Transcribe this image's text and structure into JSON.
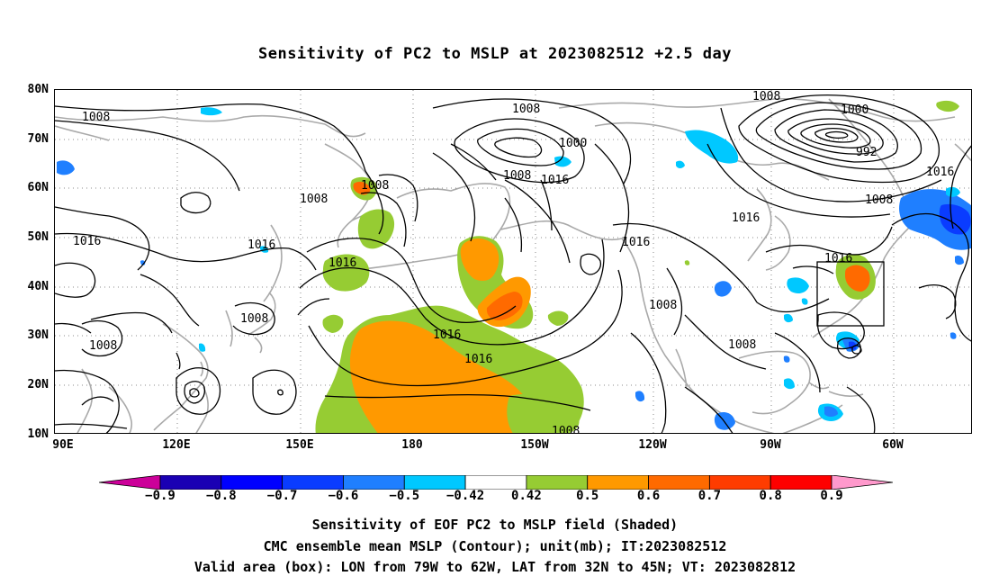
{
  "title": "Sensitivity of PC2 to MSLP at 2023082512 +2.5 day",
  "lat_labels": [
    "80N",
    "70N",
    "60N",
    "50N",
    "40N",
    "30N",
    "20N",
    "10N"
  ],
  "lon_labels": [
    "90E",
    "120E",
    "150E",
    "180",
    "150W",
    "120W",
    "90W",
    "60W"
  ],
  "contour_labels": [
    "1008",
    "1008",
    "1000",
    "1008",
    "1016",
    "1000",
    "992",
    "1008",
    "1016",
    "1008",
    "1008",
    "1016",
    "1016",
    "1016",
    "1016",
    "1016",
    "1008",
    "1008",
    "1008",
    "1016",
    "1016",
    "1008",
    "1016",
    "1008",
    "1008"
  ],
  "colorbar": {
    "tick_labels": [
      "−0.9",
      "−0.8",
      "−0.7",
      "−0.6",
      "−0.5",
      "−0.42",
      "0.42",
      "0.5",
      "0.6",
      "0.7",
      "0.8",
      "0.9"
    ],
    "colors": [
      "#cc0099",
      "#1a00b3",
      "#0000ff",
      "#0a3cff",
      "#1f7fff",
      "#00c8ff",
      "#ffffff",
      "#96cc33",
      "#ff9900",
      "#ff6a00",
      "#ff3c00",
      "#ff0000",
      "#ff99cc"
    ]
  },
  "valid_box": {
    "lon_range": [
      "79W",
      "62W"
    ],
    "lat_range": [
      "32N",
      "45N"
    ]
  },
  "footer": {
    "line1": "Sensitivity of EOF PC2 to MSLP field (Shaded)",
    "line2": "CMC ensemble mean MSLP (Contour); unit(mb); IT:2023082512",
    "line3": "Valid area (box): LON from 79W to 62W, LAT from 32N to 45N; VT: 2023082812"
  }
}
